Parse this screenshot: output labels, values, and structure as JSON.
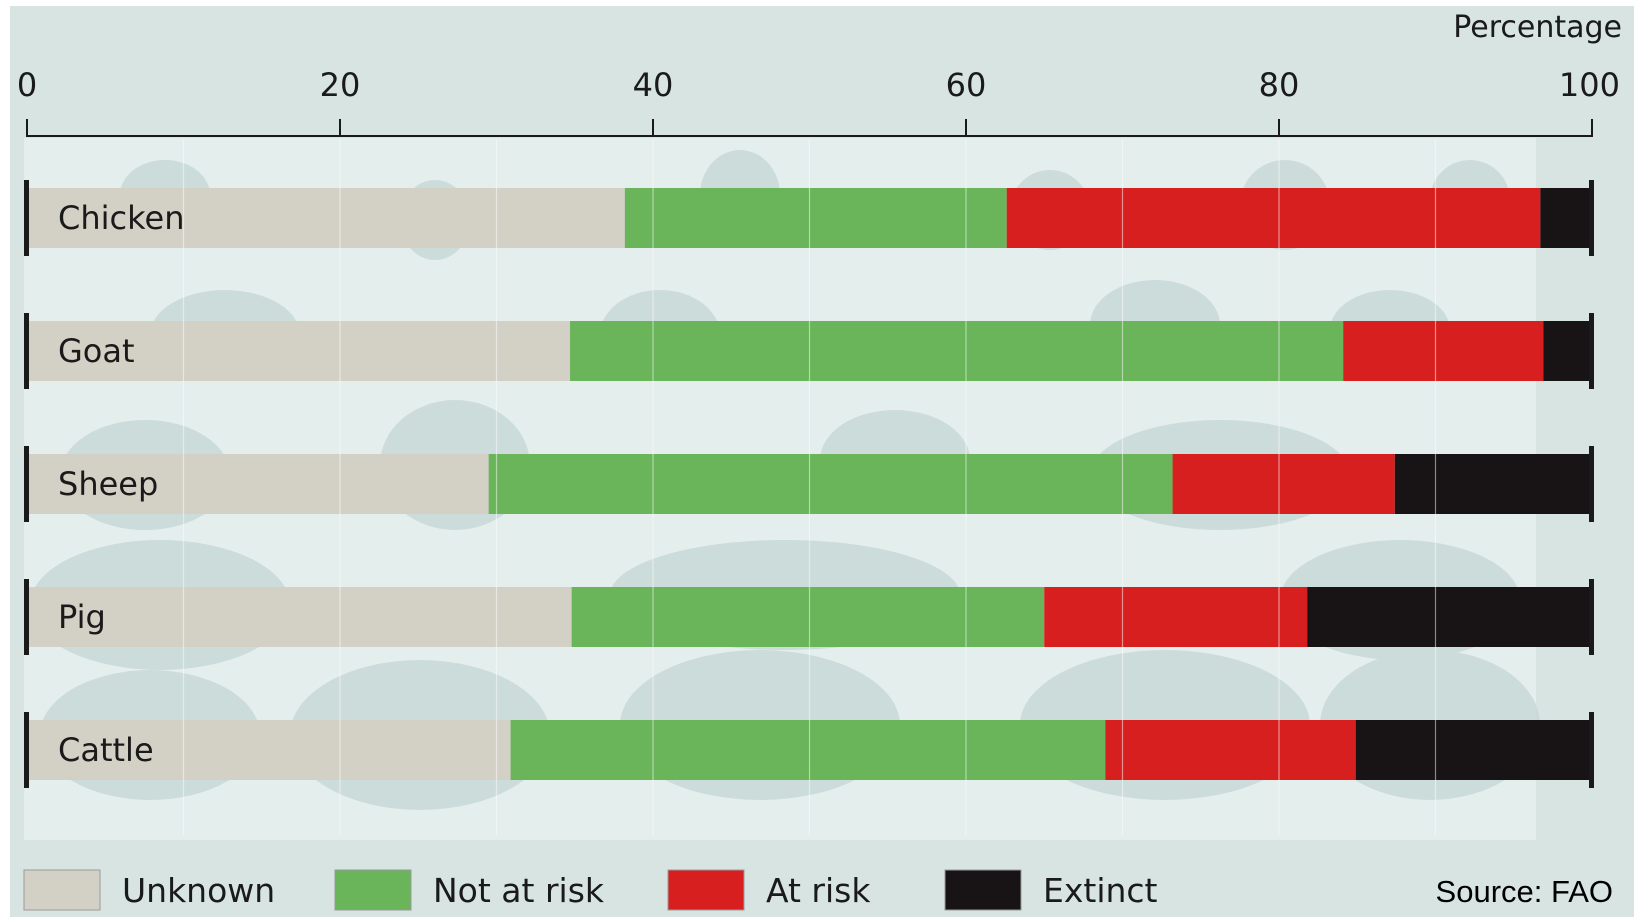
{
  "chart_data": {
    "type": "bar",
    "orientation": "horizontal",
    "stacked": true,
    "axis_unit_label": "Percentage",
    "xlim": [
      0,
      100
    ],
    "x_ticks": [
      0,
      20,
      40,
      60,
      80,
      100
    ],
    "categories": [
      "Chicken",
      "Goat",
      "Sheep",
      "Pig",
      "Cattle"
    ],
    "series": [
      {
        "name": "Unknown",
        "color": "#d3d0c6",
        "values": [
          38.2,
          34.7,
          29.5,
          34.8,
          30.9
        ]
      },
      {
        "name": "Not at risk",
        "color": "#6ab45a",
        "values": [
          24.4,
          49.4,
          43.7,
          30.2,
          38.0
        ]
      },
      {
        "name": "At risk",
        "color": "#d81f1f",
        "values": [
          34.1,
          12.8,
          14.2,
          16.8,
          16.0
        ]
      },
      {
        "name": "Extinct",
        "color": "#181315",
        "values": [
          3.3,
          3.1,
          12.6,
          18.2,
          15.1
        ]
      }
    ],
    "grid": true,
    "legend_position": "bottom",
    "source": "Source: FAO"
  }
}
